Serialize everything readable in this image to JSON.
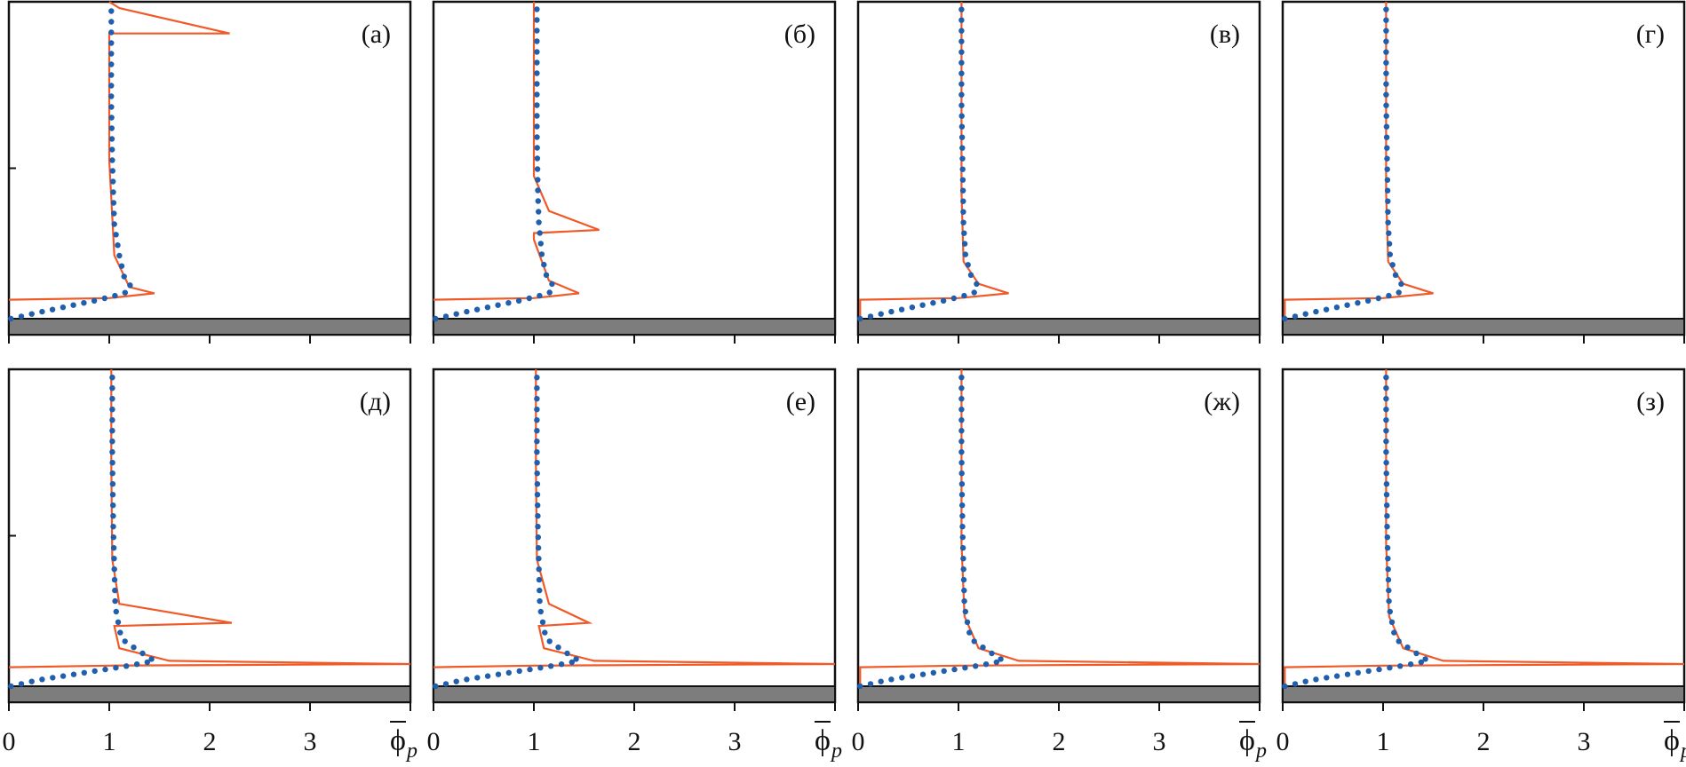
{
  "colors": {
    "line": "#f05a28",
    "dots": "#1f5fad",
    "wall": "#7d7d7d",
    "frame": "#111111"
  },
  "chart_data": {
    "type": "line",
    "rows": 2,
    "cols": 4,
    "xlim": [
      0,
      4
    ],
    "ylim": [
      0,
      1
    ],
    "x_ticks": [
      0,
      1,
      2,
      3
    ],
    "x_tick_labels": [
      "0",
      "1",
      "2",
      "3"
    ],
    "xlabel_symbol": "ϕ",
    "xlabel_subscript": "p",
    "grid": false,
    "panels": [
      {
        "label": "(а)",
        "line": [
          [
            0.0,
            0.06
          ],
          [
            1.0,
            0.065
          ],
          [
            1.45,
            0.08
          ],
          [
            1.2,
            0.1
          ],
          [
            1.05,
            0.2
          ],
          [
            1.0,
            0.5
          ],
          [
            1.0,
            0.9
          ],
          [
            2.2,
            0.9
          ],
          [
            1.1,
            0.98
          ],
          [
            1.0,
            1.0
          ]
        ],
        "dots": [
          [
            0.02,
            0.0
          ],
          [
            0.3,
            0.02
          ],
          [
            0.6,
            0.04
          ],
          [
            0.9,
            0.06
          ],
          [
            1.15,
            0.08
          ],
          [
            1.22,
            0.1
          ],
          [
            1.15,
            0.13
          ],
          [
            1.1,
            0.2
          ],
          [
            1.05,
            0.3
          ],
          [
            1.03,
            0.5
          ],
          [
            1.02,
            0.7
          ],
          [
            1.02,
            0.9
          ],
          [
            1.02,
            1.0
          ]
        ]
      },
      {
        "label": "(б)",
        "line": [
          [
            0.0,
            0.06
          ],
          [
            1.0,
            0.065
          ],
          [
            1.45,
            0.08
          ],
          [
            1.15,
            0.12
          ],
          [
            1.0,
            0.25
          ],
          [
            1.0,
            0.27
          ],
          [
            1.65,
            0.28
          ],
          [
            1.15,
            0.34
          ],
          [
            1.0,
            0.45
          ],
          [
            1.0,
            0.7
          ],
          [
            1.0,
            1.0
          ]
        ],
        "dots": [
          [
            0.02,
            0.0
          ],
          [
            0.3,
            0.02
          ],
          [
            0.6,
            0.04
          ],
          [
            0.9,
            0.06
          ],
          [
            1.15,
            0.08
          ],
          [
            1.2,
            0.1
          ],
          [
            1.12,
            0.14
          ],
          [
            1.08,
            0.2
          ],
          [
            1.05,
            0.3
          ],
          [
            1.04,
            0.4
          ],
          [
            1.03,
            0.6
          ],
          [
            1.03,
            0.8
          ],
          [
            1.03,
            1.0
          ]
        ]
      },
      {
        "label": "(в)",
        "line": [
          [
            0.02,
            0.0
          ],
          [
            0.02,
            0.06
          ],
          [
            1.0,
            0.065
          ],
          [
            1.5,
            0.08
          ],
          [
            1.2,
            0.11
          ],
          [
            1.05,
            0.18
          ],
          [
            1.03,
            0.4
          ],
          [
            1.03,
            0.7
          ],
          [
            1.03,
            1.0
          ]
        ],
        "dots": [
          [
            0.02,
            0.0
          ],
          [
            0.3,
            0.02
          ],
          [
            0.6,
            0.04
          ],
          [
            0.9,
            0.06
          ],
          [
            1.15,
            0.08
          ],
          [
            1.2,
            0.1
          ],
          [
            1.12,
            0.14
          ],
          [
            1.07,
            0.2
          ],
          [
            1.05,
            0.3
          ],
          [
            1.04,
            0.5
          ],
          [
            1.03,
            0.7
          ],
          [
            1.03,
            1.0
          ]
        ]
      },
      {
        "label": "(г)",
        "line": [
          [
            0.02,
            0.0
          ],
          [
            0.02,
            0.06
          ],
          [
            1.0,
            0.065
          ],
          [
            1.5,
            0.08
          ],
          [
            1.2,
            0.11
          ],
          [
            1.05,
            0.18
          ],
          [
            1.03,
            0.4
          ],
          [
            1.03,
            0.7
          ],
          [
            1.03,
            1.0
          ]
        ],
        "dots": [
          [
            0.02,
            0.0
          ],
          [
            0.3,
            0.02
          ],
          [
            0.6,
            0.04
          ],
          [
            0.9,
            0.06
          ],
          [
            1.15,
            0.08
          ],
          [
            1.2,
            0.1
          ],
          [
            1.12,
            0.14
          ],
          [
            1.07,
            0.2
          ],
          [
            1.05,
            0.3
          ],
          [
            1.04,
            0.5
          ],
          [
            1.03,
            0.7
          ],
          [
            1.03,
            1.0
          ]
        ]
      },
      {
        "label": "(д)",
        "line": [
          [
            0.0,
            0.06
          ],
          [
            1.0,
            0.065
          ],
          [
            4.0,
            0.07
          ],
          [
            1.6,
            0.08
          ],
          [
            1.1,
            0.12
          ],
          [
            1.05,
            0.19
          ],
          [
            2.22,
            0.2
          ],
          [
            1.1,
            0.26
          ],
          [
            1.03,
            0.4
          ],
          [
            1.02,
            0.7
          ],
          [
            1.02,
            1.0
          ]
        ],
        "dots": [
          [
            0.02,
            0.0
          ],
          [
            0.3,
            0.02
          ],
          [
            0.6,
            0.035
          ],
          [
            0.9,
            0.05
          ],
          [
            1.2,
            0.065
          ],
          [
            1.45,
            0.08
          ],
          [
            1.3,
            0.11
          ],
          [
            1.12,
            0.15
          ],
          [
            1.06,
            0.25
          ],
          [
            1.04,
            0.5
          ],
          [
            1.03,
            0.75
          ],
          [
            1.03,
            1.0
          ]
        ]
      },
      {
        "label": "(е)",
        "line": [
          [
            0.0,
            0.06
          ],
          [
            1.0,
            0.065
          ],
          [
            4.0,
            0.07
          ],
          [
            1.6,
            0.08
          ],
          [
            1.1,
            0.12
          ],
          [
            1.05,
            0.19
          ],
          [
            1.55,
            0.2
          ],
          [
            1.15,
            0.26
          ],
          [
            1.03,
            0.4
          ],
          [
            1.02,
            0.7
          ],
          [
            1.02,
            1.0
          ]
        ],
        "dots": [
          [
            0.02,
            0.0
          ],
          [
            0.3,
            0.02
          ],
          [
            0.6,
            0.035
          ],
          [
            0.9,
            0.05
          ],
          [
            1.2,
            0.065
          ],
          [
            1.45,
            0.08
          ],
          [
            1.3,
            0.11
          ],
          [
            1.12,
            0.15
          ],
          [
            1.06,
            0.25
          ],
          [
            1.04,
            0.5
          ],
          [
            1.03,
            0.75
          ],
          [
            1.03,
            1.0
          ]
        ]
      },
      {
        "label": "(ж)",
        "line": [
          [
            0.02,
            0.0
          ],
          [
            0.02,
            0.06
          ],
          [
            1.0,
            0.065
          ],
          [
            4.0,
            0.07
          ],
          [
            1.6,
            0.08
          ],
          [
            1.2,
            0.12
          ],
          [
            1.06,
            0.22
          ],
          [
            1.03,
            0.45
          ],
          [
            1.03,
            0.75
          ],
          [
            1.03,
            1.0
          ]
        ],
        "dots": [
          [
            0.02,
            0.0
          ],
          [
            0.3,
            0.02
          ],
          [
            0.6,
            0.035
          ],
          [
            0.9,
            0.05
          ],
          [
            1.2,
            0.065
          ],
          [
            1.45,
            0.08
          ],
          [
            1.3,
            0.11
          ],
          [
            1.12,
            0.15
          ],
          [
            1.06,
            0.25
          ],
          [
            1.04,
            0.5
          ],
          [
            1.03,
            0.75
          ],
          [
            1.03,
            1.0
          ]
        ]
      },
      {
        "label": "(з)",
        "line": [
          [
            0.02,
            0.0
          ],
          [
            0.02,
            0.06
          ],
          [
            1.0,
            0.065
          ],
          [
            4.0,
            0.07
          ],
          [
            1.6,
            0.08
          ],
          [
            1.2,
            0.12
          ],
          [
            1.06,
            0.22
          ],
          [
            1.03,
            0.45
          ],
          [
            1.03,
            0.75
          ],
          [
            1.03,
            1.0
          ]
        ],
        "dots": [
          [
            0.02,
            0.0
          ],
          [
            0.3,
            0.02
          ],
          [
            0.6,
            0.035
          ],
          [
            0.9,
            0.05
          ],
          [
            1.2,
            0.065
          ],
          [
            1.45,
            0.08
          ],
          [
            1.3,
            0.11
          ],
          [
            1.12,
            0.15
          ],
          [
            1.06,
            0.25
          ],
          [
            1.04,
            0.5
          ],
          [
            1.03,
            0.75
          ],
          [
            1.03,
            1.0
          ]
        ]
      }
    ]
  }
}
